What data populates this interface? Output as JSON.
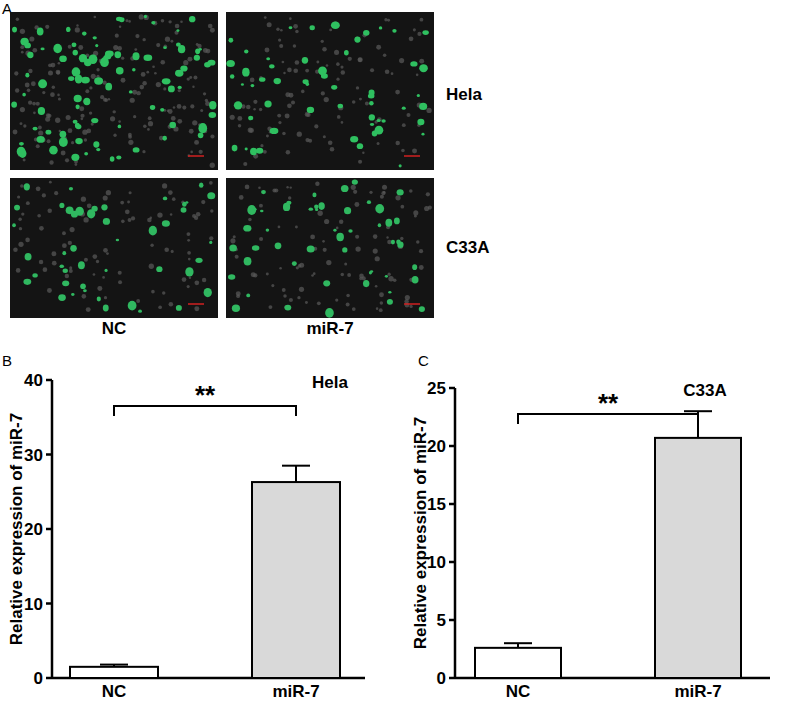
{
  "panel_a": {
    "label": "A",
    "rows": [
      "Hela",
      "C33A"
    ],
    "columns": [
      "NC",
      "miR-7"
    ]
  },
  "chart_data": [
    {
      "type": "bar",
      "panel": "B",
      "title": "Hela",
      "categories": [
        "NC",
        "miR-7"
      ],
      "values": [
        1.5,
        26.3
      ],
      "errors": [
        0.3,
        2.2
      ],
      "colors": [
        "#ffffff",
        "#d9d9d9"
      ],
      "ylim": [
        0,
        40
      ],
      "yticks": [
        0,
        10,
        20,
        30,
        40
      ],
      "y_label": "Relative expression of miR-7",
      "annotations": [
        "**"
      ]
    },
    {
      "type": "bar",
      "panel": "C",
      "title": "C33A",
      "categories": [
        "NC",
        "miR-7"
      ],
      "values": [
        2.6,
        20.7
      ],
      "errors": [
        0.4,
        2.3
      ],
      "colors": [
        "#ffffff",
        "#d9d9d9"
      ],
      "ylim": [
        0,
        25
      ],
      "yticks": [
        0,
        5,
        10,
        15,
        20,
        25
      ],
      "y_label": "Relative expression of miR-7",
      "annotations": [
        "**"
      ]
    }
  ]
}
